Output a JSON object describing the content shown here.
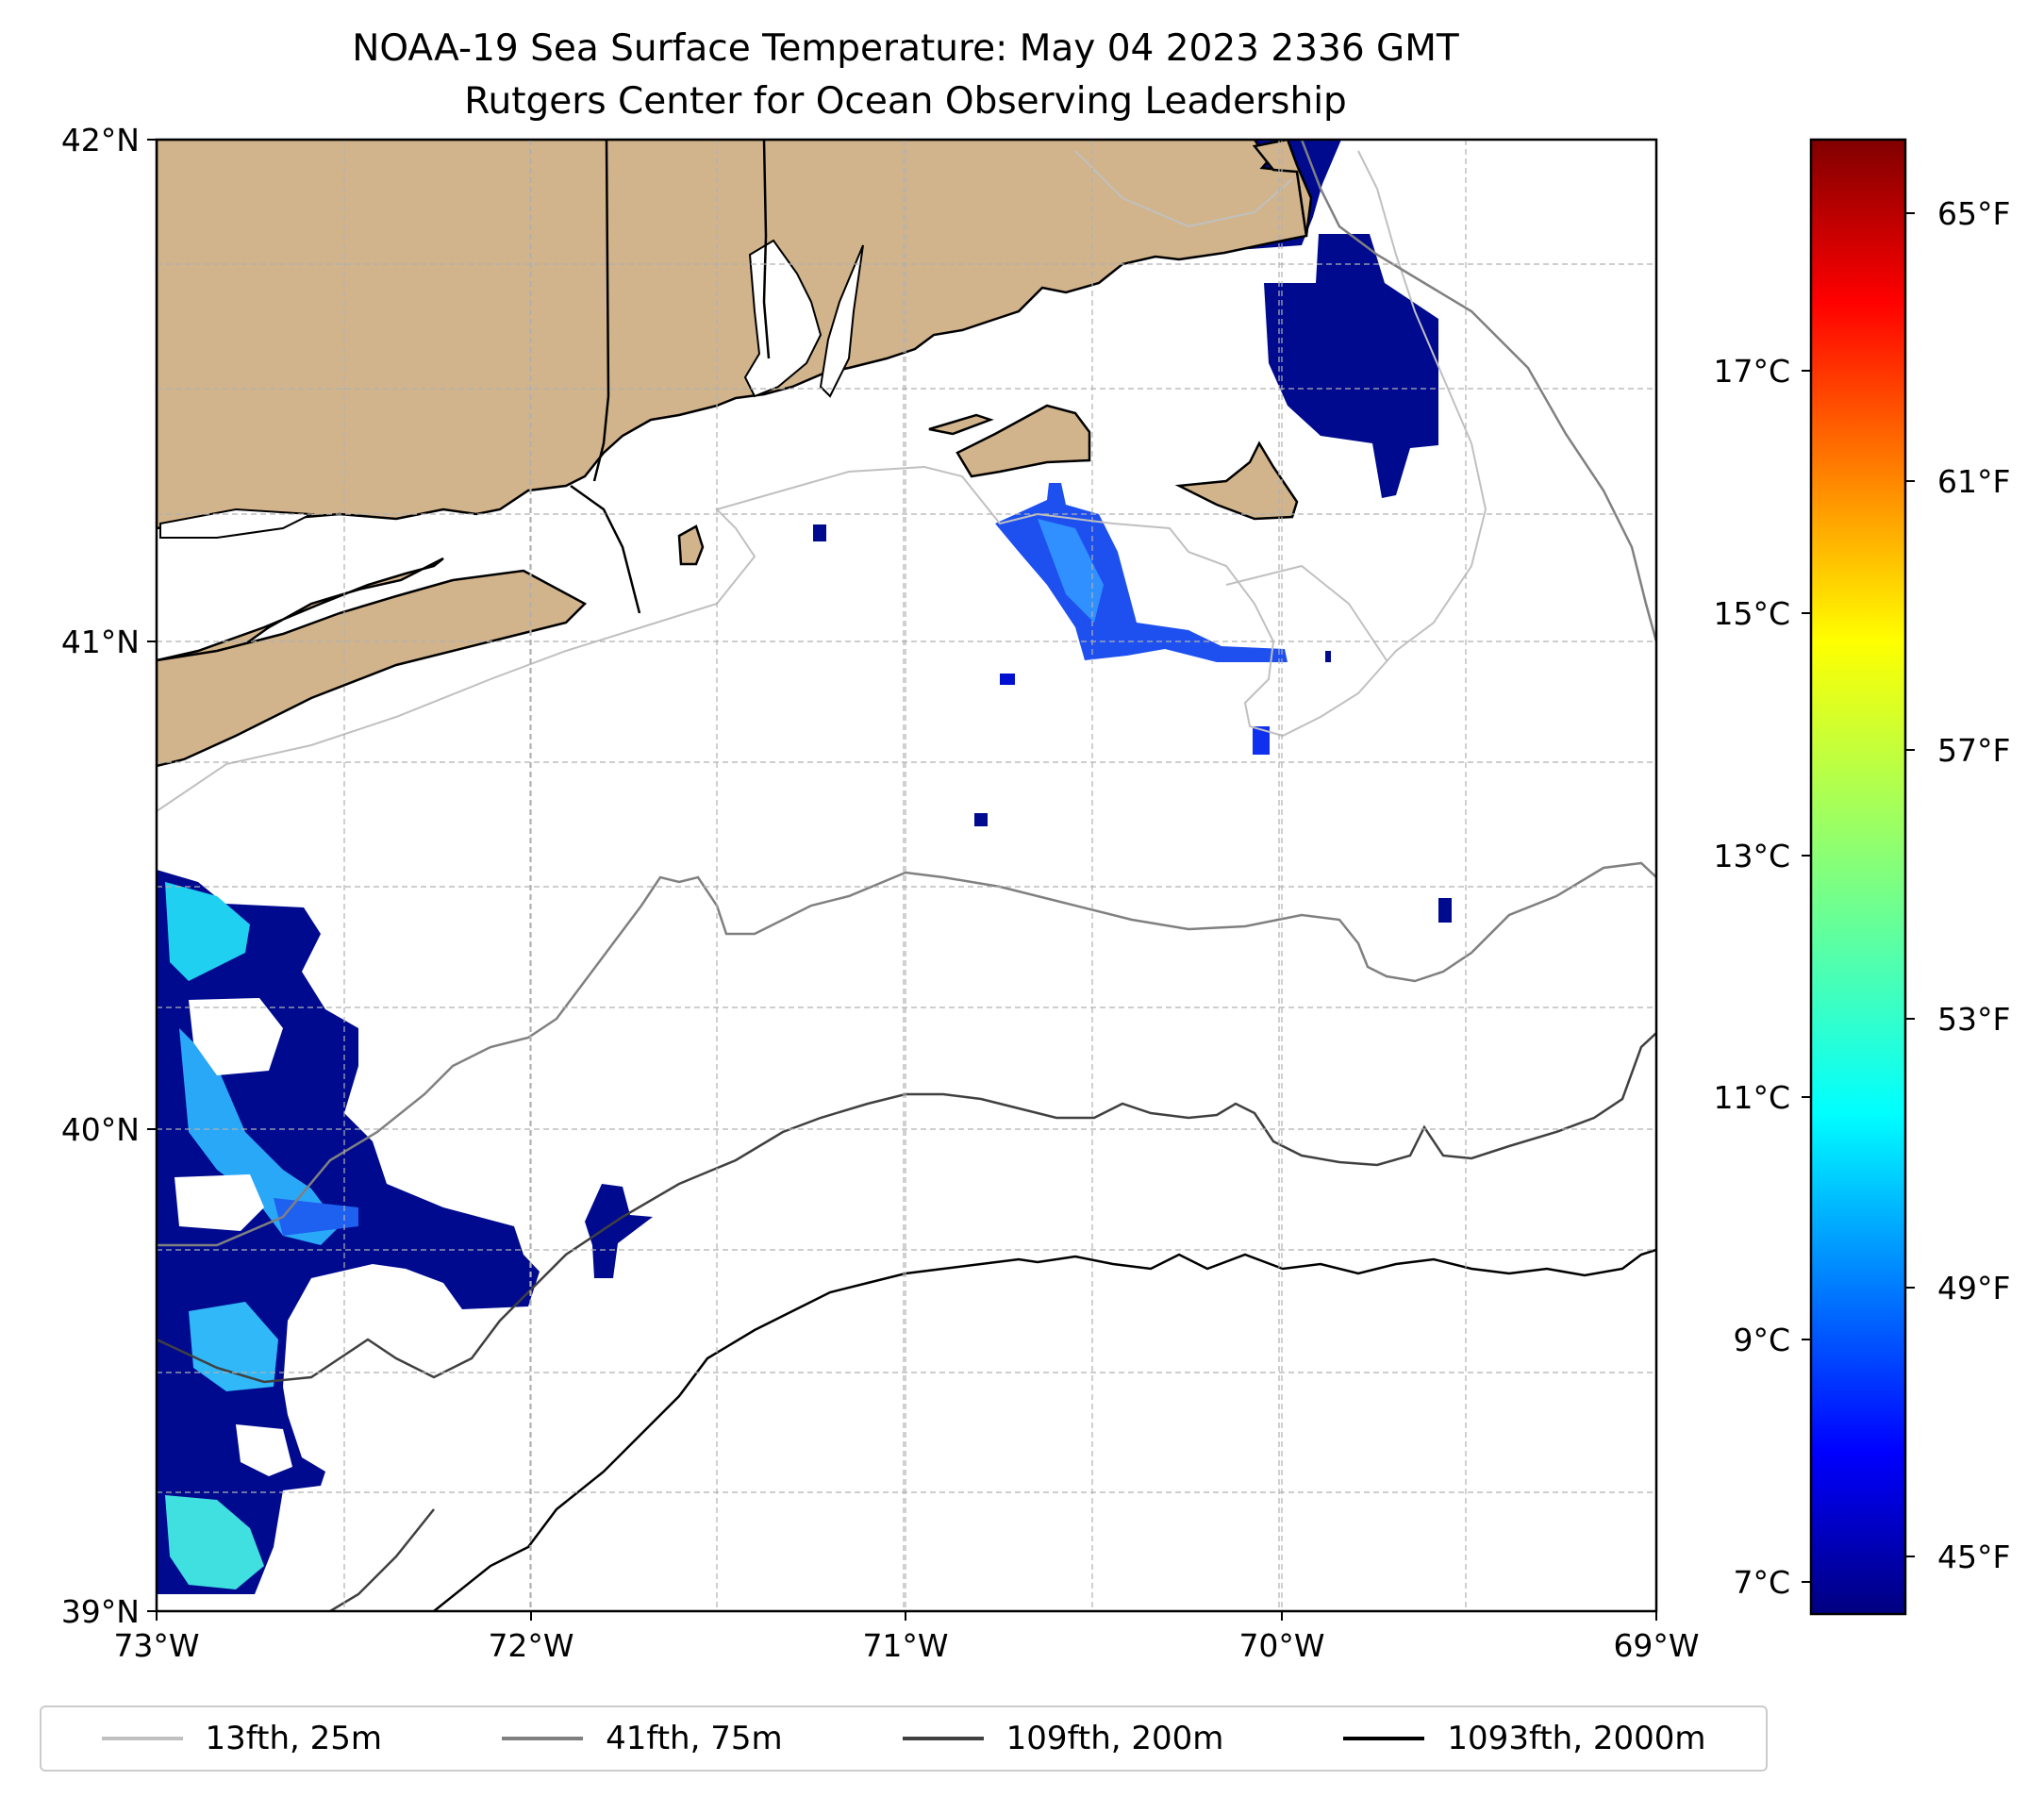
{
  "title": "NOAA-19 Sea Surface Temperature: May 04 2023 2336 GMT",
  "subtitle": "Rutgers Center for Ocean Observing Leadership",
  "map": {
    "lon_range": [
      -73,
      -69
    ],
    "lat_range": [
      39,
      42
    ],
    "x_ticks": [
      "73°W",
      "72°W",
      "71°W",
      "70°W",
      "69°W"
    ],
    "y_ticks": [
      "42°N",
      "41°N",
      "40°N",
      "39°N"
    ],
    "land_color": "#d2b48c",
    "grid": true
  },
  "colorbar": {
    "colormap": "jet",
    "celsius_ticks": [
      "17°C",
      "15°C",
      "13°C",
      "11°C",
      "9°C",
      "7°C"
    ],
    "fahrenheit_ticks": [
      "65°F",
      "61°F",
      "57°F",
      "53°F",
      "49°F",
      "45°F"
    ],
    "range_c": [
      6.8,
      19.4
    ]
  },
  "legend": [
    {
      "label": "13fth, 25m",
      "color": "#c0c0c0"
    },
    {
      "label": "41fth, 75m",
      "color": "#808080"
    },
    {
      "label": "109fth, 200m",
      "color": "#404040"
    },
    {
      "label": "1093fth, 2000m",
      "color": "#000000"
    }
  ]
}
